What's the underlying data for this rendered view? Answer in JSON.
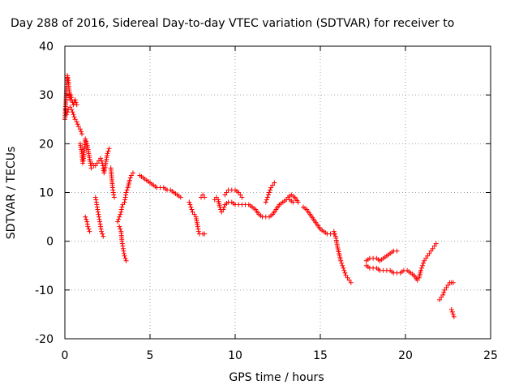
{
  "chart_data": {
    "type": "scatter",
    "title": "Day 288 of 2016, Sidereal Day-to-day VTEC variation (SDTVAR) for receiver to",
    "xlabel": "GPS time / hours",
    "ylabel": "SDTVAR / TECUs",
    "xlim": [
      0,
      25
    ],
    "ylim": [
      -20,
      40
    ],
    "xticks": [
      "0",
      "5",
      "10",
      "15",
      "20",
      "25"
    ],
    "yticks": [
      "-20",
      "-10",
      "0",
      "10",
      "20",
      "30",
      "40"
    ],
    "grid": true,
    "marker": "plus",
    "color": "#ff0000",
    "series": [
      {
        "segments": [
          [
            [
              0.0,
              25
            ],
            [
              0.05,
              28
            ],
            [
              0.1,
              31
            ],
            [
              0.15,
              34
            ],
            [
              0.2,
              33
            ],
            [
              0.25,
              31
            ],
            [
              0.3,
              29
            ],
            [
              0.35,
              30
            ],
            [
              0.4,
              29
            ],
            [
              0.5,
              28
            ],
            [
              0.6,
              29
            ],
            [
              0.7,
              28
            ]
          ],
          [
            [
              0.05,
              27
            ],
            [
              0.1,
              26
            ],
            [
              0.2,
              27
            ],
            [
              0.3,
              27.5
            ],
            [
              0.4,
              27
            ],
            [
              0.5,
              26
            ],
            [
              0.6,
              25
            ],
            [
              0.7,
              24.5
            ],
            [
              0.8,
              23.5
            ],
            [
              0.9,
              23
            ],
            [
              1.0,
              22
            ]
          ],
          [
            [
              0.9,
              20
            ],
            [
              1.0,
              18
            ],
            [
              1.05,
              16
            ],
            [
              1.1,
              17
            ],
            [
              1.15,
              19
            ],
            [
              1.2,
              21
            ],
            [
              1.3,
              20
            ],
            [
              1.4,
              18
            ],
            [
              1.5,
              16
            ],
            [
              1.55,
              15
            ]
          ],
          [
            [
              1.2,
              5
            ],
            [
              1.25,
              4.5
            ],
            [
              1.3,
              4
            ],
            [
              1.35,
              3
            ],
            [
              1.4,
              2.5
            ],
            [
              1.45,
              2
            ]
          ],
          [
            [
              1.6,
              16
            ],
            [
              1.7,
              15.5
            ],
            [
              1.8,
              15.5
            ],
            [
              1.9,
              16
            ],
            [
              2.0,
              16.5
            ],
            [
              2.1,
              17
            ],
            [
              2.2,
              16
            ],
            [
              2.25,
              15
            ],
            [
              2.3,
              14
            ],
            [
              2.4,
              16
            ],
            [
              2.5,
              18
            ],
            [
              2.6,
              19
            ]
          ],
          [
            [
              1.8,
              9
            ],
            [
              1.85,
              8
            ],
            [
              1.9,
              7
            ],
            [
              1.95,
              6
            ],
            [
              2.0,
              5
            ],
            [
              2.05,
              4
            ],
            [
              2.1,
              3
            ],
            [
              2.15,
              2
            ],
            [
              2.2,
              1.5
            ],
            [
              2.25,
              1
            ]
          ],
          [
            [
              2.7,
              15
            ],
            [
              2.75,
              13
            ],
            [
              2.8,
              11
            ],
            [
              2.85,
              10
            ],
            [
              2.9,
              9
            ]
          ],
          [
            [
              3.1,
              4
            ],
            [
              3.2,
              5
            ],
            [
              3.3,
              6
            ],
            [
              3.35,
              7
            ],
            [
              3.4,
              7.5
            ],
            [
              3.5,
              8
            ],
            [
              3.55,
              9
            ],
            [
              3.6,
              10
            ],
            [
              3.7,
              11
            ],
            [
              3.8,
              12.5
            ],
            [
              3.9,
              13.5
            ],
            [
              4.0,
              14
            ]
          ],
          [
            [
              3.2,
              3
            ],
            [
              3.3,
              2
            ],
            [
              3.35,
              0
            ],
            [
              3.4,
              -1
            ],
            [
              3.45,
              -2
            ],
            [
              3.5,
              -3
            ],
            [
              3.55,
              -3.5
            ],
            [
              3.6,
              -4
            ]
          ],
          [
            [
              4.4,
              13.5
            ],
            [
              4.6,
              13
            ],
            [
              4.8,
              12.5
            ],
            [
              5.0,
              12
            ],
            [
              5.2,
              11.5
            ],
            [
              5.4,
              11
            ],
            [
              5.6,
              11
            ],
            [
              5.8,
              11
            ],
            [
              6.0,
              10.5
            ],
            [
              6.2,
              10.5
            ],
            [
              6.4,
              10
            ],
            [
              6.6,
              9.5
            ],
            [
              6.8,
              9
            ]
          ],
          [
            [
              7.3,
              8
            ],
            [
              7.4,
              7
            ],
            [
              7.5,
              6
            ],
            [
              7.6,
              5.5
            ],
            [
              7.7,
              5
            ],
            [
              7.8,
              3
            ],
            [
              7.85,
              2
            ],
            [
              7.9,
              1.5
            ],
            [
              8.1,
              1.5
            ],
            [
              8.2,
              1.5
            ]
          ],
          [
            [
              8.0,
              9
            ],
            [
              8.1,
              9.5
            ],
            [
              8.2,
              9
            ]
          ],
          [
            [
              8.8,
              8.5
            ],
            [
              8.9,
              9
            ],
            [
              9.0,
              8.5
            ],
            [
              9.1,
              7
            ],
            [
              9.2,
              6
            ],
            [
              9.3,
              6.5
            ],
            [
              9.4,
              7.5
            ],
            [
              9.6,
              8
            ],
            [
              9.8,
              8
            ],
            [
              10.0,
              7.5
            ],
            [
              10.2,
              7.5
            ],
            [
              10.4,
              7.5
            ],
            [
              10.6,
              7.5
            ],
            [
              10.8,
              7.5
            ],
            [
              11.0,
              7
            ],
            [
              11.2,
              6.5
            ],
            [
              11.4,
              5.5
            ],
            [
              11.6,
              5
            ],
            [
              11.8,
              5
            ]
          ],
          [
            [
              9.4,
              9.5
            ],
            [
              9.5,
              10
            ],
            [
              9.6,
              10.5
            ],
            [
              9.8,
              10.5
            ],
            [
              10.0,
              10.5
            ],
            [
              10.2,
              10
            ],
            [
              10.3,
              9.5
            ],
            [
              10.4,
              9
            ]
          ],
          [
            [
              11.8,
              8
            ],
            [
              11.9,
              9
            ],
            [
              12.0,
              10
            ],
            [
              12.1,
              11
            ],
            [
              12.2,
              11.5
            ],
            [
              12.3,
              12
            ]
          ],
          [
            [
              12.0,
              5
            ],
            [
              12.2,
              5.5
            ],
            [
              12.4,
              6.5
            ],
            [
              12.6,
              7.5
            ],
            [
              12.8,
              8
            ],
            [
              13.0,
              8.5
            ],
            [
              13.2,
              8.5
            ],
            [
              13.4,
              8
            ]
          ],
          [
            [
              13.1,
              9
            ],
            [
              13.3,
              9.5
            ],
            [
              13.5,
              9
            ],
            [
              13.7,
              8
            ]
          ],
          [
            [
              14.0,
              7
            ],
            [
              14.2,
              6.5
            ],
            [
              14.4,
              5.5
            ],
            [
              14.6,
              4.5
            ],
            [
              14.8,
              3.5
            ],
            [
              15.0,
              2.5
            ],
            [
              15.2,
              2
            ],
            [
              15.4,
              1.5
            ],
            [
              15.6,
              1.5
            ],
            [
              15.8,
              1.5
            ]
          ],
          [
            [
              15.8,
              2
            ],
            [
              15.9,
              1
            ],
            [
              16.0,
              -1
            ],
            [
              16.1,
              -2.5
            ],
            [
              16.2,
              -4
            ],
            [
              16.3,
              -5
            ],
            [
              16.4,
              -6
            ],
            [
              16.5,
              -7
            ],
            [
              16.6,
              -7.5
            ],
            [
              16.7,
              -8
            ],
            [
              16.8,
              -8.5
            ]
          ],
          [
            [
              17.7,
              -5
            ],
            [
              17.9,
              -5.5
            ],
            [
              18.1,
              -5.5
            ],
            [
              18.3,
              -5.5
            ],
            [
              18.5,
              -6
            ],
            [
              18.7,
              -6
            ],
            [
              18.9,
              -6
            ],
            [
              19.1,
              -6
            ],
            [
              19.3,
              -6.5
            ],
            [
              19.5,
              -6.5
            ],
            [
              19.7,
              -6.5
            ],
            [
              19.9,
              -6
            ],
            [
              20.1,
              -6
            ],
            [
              20.3,
              -6.5
            ],
            [
              20.5,
              -7
            ],
            [
              20.7,
              -8
            ]
          ],
          [
            [
              17.7,
              -4
            ],
            [
              17.9,
              -3.5
            ],
            [
              18.1,
              -3.5
            ],
            [
              18.3,
              -3.5
            ],
            [
              18.5,
              -4
            ],
            [
              18.7,
              -3.5
            ],
            [
              18.9,
              -3
            ],
            [
              19.1,
              -2.5
            ],
            [
              19.3,
              -2
            ],
            [
              19.5,
              -2
            ]
          ],
          [
            [
              20.8,
              -7.5
            ],
            [
              20.9,
              -6
            ],
            [
              21.0,
              -5
            ],
            [
              21.1,
              -4
            ],
            [
              21.2,
              -3.5
            ],
            [
              21.3,
              -3
            ],
            [
              21.4,
              -2.5
            ],
            [
              21.5,
              -2
            ],
            [
              21.6,
              -1.5
            ],
            [
              21.7,
              -1
            ],
            [
              21.8,
              -0.5
            ]
          ],
          [
            [
              22.0,
              -12
            ],
            [
              22.1,
              -11.5
            ],
            [
              22.2,
              -11
            ],
            [
              22.3,
              -10
            ],
            [
              22.4,
              -9.5
            ],
            [
              22.5,
              -9
            ],
            [
              22.6,
              -8.5
            ],
            [
              22.7,
              -8.5
            ],
            [
              22.8,
              -8.5
            ]
          ],
          [
            [
              22.7,
              -14
            ],
            [
              22.75,
              -14.5
            ],
            [
              22.8,
              -15
            ],
            [
              22.85,
              -15.5
            ]
          ]
        ]
      }
    ]
  }
}
